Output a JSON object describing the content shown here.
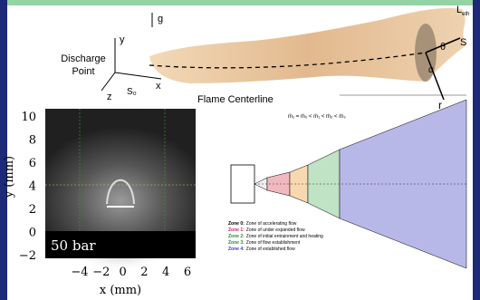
{
  "schematic": {
    "gravity": "g",
    "axis_y": "y",
    "axis_x": "x",
    "axis_z": "z",
    "discharge_point": [
      "Discharge",
      "Point"
    ],
    "s0": "S₀",
    "centerline": "Flame Centerline",
    "l_label": "L",
    "l_sub": "eth",
    "s": "S",
    "theta": "θ",
    "alpha": "α",
    "r": "r",
    "equation": "ṁ₁ = ṁ₀ < ṁ₁ < ṁ₂ < ṁ₃"
  },
  "plot": {
    "yticks": [
      "10",
      "8",
      "6",
      "4",
      "2",
      "0",
      "−2"
    ],
    "xticks": [
      "−4",
      "−2",
      "0",
      "2",
      "4",
      "6"
    ],
    "xlabel": "x (mm)",
    "ylabel": "y (mm)",
    "annotation": "50 bar"
  },
  "zones": [
    {
      "name": "Zone 0:",
      "text": "Zone of accelerating flow"
    },
    {
      "name": "Zone 1:",
      "text": "Zone of under expanded flow"
    },
    {
      "name": "Zone 2:",
      "text": "Zone of initial entrainment and heating"
    },
    {
      "name": "Zone 3:",
      "text": "Zone of flow establishment"
    },
    {
      "name": "Zone 4:",
      "text": "Zone of established flow"
    }
  ]
}
